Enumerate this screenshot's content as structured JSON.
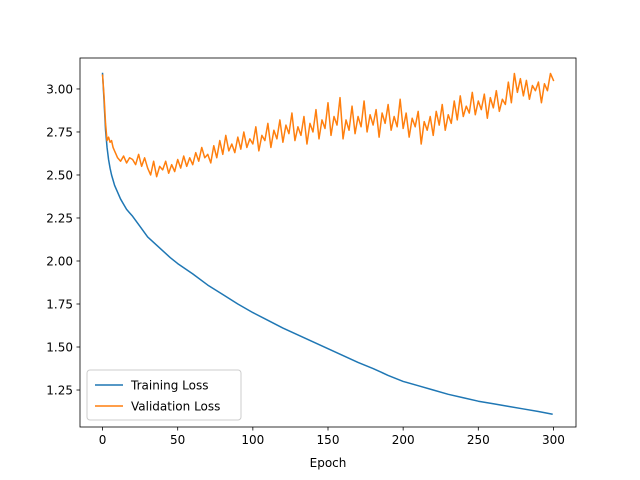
{
  "chart_data": {
    "type": "line",
    "title": "",
    "xlabel": "Epoch",
    "ylabel": "",
    "xlim": [
      -15,
      315
    ],
    "ylim": [
      1.035,
      3.18
    ],
    "xticks": [
      0,
      50,
      100,
      150,
      200,
      250,
      300
    ],
    "yticks": [
      1.25,
      1.5,
      1.75,
      2.0,
      2.25,
      2.5,
      2.75,
      3.0
    ],
    "grid": false,
    "legend": {
      "position": "lower-left"
    },
    "series": [
      {
        "name": "Training Loss",
        "color": "#1f77b4",
        "x": [
          0,
          1,
          2,
          3,
          4,
          5,
          6,
          7,
          8,
          10,
          12,
          14,
          16,
          18,
          20,
          25,
          30,
          35,
          40,
          45,
          50,
          60,
          70,
          80,
          90,
          100,
          110,
          120,
          130,
          140,
          150,
          160,
          170,
          180,
          190,
          200,
          210,
          220,
          230,
          240,
          250,
          260,
          270,
          280,
          290,
          299
        ],
        "y": [
          3.09,
          2.93,
          2.76,
          2.66,
          2.59,
          2.54,
          2.5,
          2.47,
          2.44,
          2.4,
          2.36,
          2.33,
          2.3,
          2.28,
          2.26,
          2.2,
          2.14,
          2.1,
          2.06,
          2.02,
          1.985,
          1.925,
          1.86,
          1.805,
          1.75,
          1.7,
          1.655,
          1.61,
          1.57,
          1.53,
          1.49,
          1.45,
          1.41,
          1.375,
          1.335,
          1.3,
          1.275,
          1.25,
          1.225,
          1.205,
          1.185,
          1.17,
          1.155,
          1.14,
          1.125,
          1.11
        ]
      },
      {
        "name": "Validation Loss",
        "color": "#ff7f0e",
        "x": [
          0,
          1,
          2,
          3,
          4,
          5,
          6,
          7,
          8,
          9,
          10,
          12,
          14,
          16,
          18,
          20,
          22,
          24,
          26,
          28,
          30,
          32,
          34,
          36,
          38,
          40,
          42,
          44,
          46,
          48,
          50,
          52,
          54,
          56,
          58,
          60,
          62,
          64,
          66,
          68,
          70,
          72,
          74,
          76,
          78,
          80,
          82,
          84,
          86,
          88,
          90,
          92,
          94,
          96,
          98,
          100,
          102,
          104,
          106,
          108,
          110,
          112,
          114,
          116,
          118,
          120,
          122,
          124,
          126,
          128,
          130,
          132,
          134,
          136,
          138,
          140,
          142,
          144,
          146,
          148,
          150,
          152,
          154,
          156,
          158,
          160,
          162,
          164,
          166,
          168,
          170,
          172,
          174,
          176,
          178,
          180,
          182,
          184,
          186,
          188,
          190,
          192,
          194,
          196,
          198,
          200,
          202,
          204,
          206,
          208,
          210,
          212,
          214,
          216,
          218,
          220,
          222,
          224,
          226,
          228,
          230,
          232,
          234,
          236,
          238,
          240,
          242,
          244,
          246,
          248,
          250,
          252,
          254,
          256,
          258,
          260,
          262,
          264,
          266,
          268,
          270,
          272,
          274,
          276,
          278,
          280,
          282,
          284,
          286,
          288,
          290,
          292,
          294,
          296,
          298,
          300
        ],
        "y": [
          3.08,
          2.96,
          2.8,
          2.7,
          2.72,
          2.69,
          2.7,
          2.66,
          2.64,
          2.62,
          2.6,
          2.58,
          2.61,
          2.57,
          2.6,
          2.59,
          2.56,
          2.62,
          2.55,
          2.6,
          2.54,
          2.5,
          2.58,
          2.49,
          2.55,
          2.53,
          2.58,
          2.51,
          2.56,
          2.52,
          2.59,
          2.54,
          2.61,
          2.55,
          2.6,
          2.56,
          2.63,
          2.58,
          2.66,
          2.6,
          2.62,
          2.57,
          2.67,
          2.6,
          2.7,
          2.62,
          2.73,
          2.64,
          2.68,
          2.63,
          2.72,
          2.65,
          2.75,
          2.66,
          2.71,
          2.68,
          2.78,
          2.64,
          2.73,
          2.7,
          2.8,
          2.66,
          2.76,
          2.71,
          2.82,
          2.69,
          2.79,
          2.74,
          2.86,
          2.7,
          2.78,
          2.73,
          2.84,
          2.68,
          2.8,
          2.75,
          2.88,
          2.71,
          2.82,
          2.77,
          2.92,
          2.73,
          2.84,
          2.79,
          2.95,
          2.71,
          2.82,
          2.76,
          2.9,
          2.74,
          2.84,
          2.78,
          2.93,
          2.75,
          2.85,
          2.79,
          2.88,
          2.72,
          2.86,
          2.8,
          2.91,
          2.76,
          2.84,
          2.78,
          2.94,
          2.77,
          2.86,
          2.72,
          2.83,
          2.78,
          2.87,
          2.68,
          2.81,
          2.76,
          2.84,
          2.73,
          2.87,
          2.79,
          2.91,
          2.76,
          2.85,
          2.8,
          2.93,
          2.82,
          2.96,
          2.84,
          2.9,
          2.86,
          2.98,
          2.85,
          2.93,
          2.88,
          2.97,
          2.83,
          2.95,
          2.89,
          2.99,
          2.87,
          2.94,
          2.91,
          3.04,
          2.92,
          3.09,
          2.98,
          3.06,
          2.96,
          3.05,
          2.94,
          3.02,
          2.99,
          3.04,
          2.92,
          3.03,
          2.99,
          3.09,
          3.05
        ]
      }
    ]
  }
}
